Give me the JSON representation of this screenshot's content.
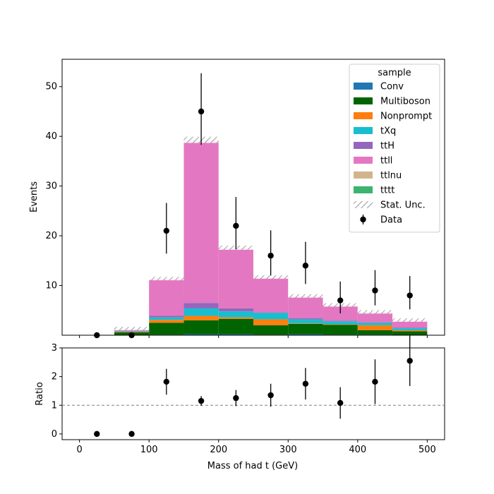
{
  "chart_data": {
    "type": "bar",
    "stacked": true,
    "xlabel": "Mass of had t (GeV)",
    "main_panel": {
      "ylabel": "Events",
      "xlim": [
        -25,
        525
      ],
      "ylim": [
        0,
        55.5
      ],
      "xticks": [
        0,
        100,
        200,
        300,
        400,
        500
      ],
      "yticks": [
        10,
        20,
        30,
        40,
        50
      ],
      "bin_edges": [
        0,
        50,
        100,
        150,
        200,
        250,
        300,
        350,
        400,
        450,
        500
      ],
      "series": [
        {
          "name": "Conv",
          "color": "#1f77b4",
          "values": [
            0,
            0,
            0.1,
            0.2,
            0.2,
            0.1,
            0.2,
            0.1,
            0.1,
            0
          ]
        },
        {
          "name": "Multiboson",
          "color": "#006400",
          "values": [
            0,
            0.6,
            2.4,
            2.8,
            3.1,
            1.9,
            2.1,
            2.0,
            0.9,
            0.8
          ]
        },
        {
          "name": "Nonprompt",
          "color": "#ff7f0e",
          "values": [
            0,
            0.1,
            0.6,
            0.9,
            0.3,
            1.2,
            0.1,
            0.1,
            1.0,
            0.2
          ]
        },
        {
          "name": "tXq",
          "color": "#17becf",
          "values": [
            0,
            0.1,
            0.5,
            1.5,
            1.2,
            1.3,
            0.8,
            0.6,
            0.5,
            0.4
          ]
        },
        {
          "name": "ttH",
          "color": "#9467bd",
          "values": [
            0,
            0.1,
            0.3,
            1.1,
            0.6,
            0.1,
            0.2,
            0.1,
            0.1,
            0.1
          ]
        },
        {
          "name": "ttll",
          "color": "#e377c2",
          "values": [
            0,
            0.4,
            7.4,
            32.5,
            12.1,
            7.0,
            4.4,
            3.1,
            2.0,
            1.5
          ]
        },
        {
          "name": "ttlnu",
          "color": "#d2b48c",
          "values": [
            0,
            0.05,
            0.1,
            0.2,
            0.1,
            0.1,
            0.1,
            0.1,
            0.1,
            0.05
          ]
        },
        {
          "name": "tttt",
          "color": "#3cb371",
          "values": [
            0,
            0,
            0,
            0.1,
            0,
            0,
            0,
            0,
            0,
            0
          ]
        }
      ],
      "stat_unc_label": "Stat. Unc.",
      "data": {
        "name": "Data",
        "x": [
          25,
          75,
          125,
          175,
          225,
          275,
          325,
          375,
          425,
          475
        ],
        "y": [
          0,
          0,
          21,
          45,
          22,
          16,
          14,
          7,
          9,
          8
        ],
        "yerr_low": [
          0,
          0,
          4.6,
          6.7,
          4.7,
          4.0,
          3.7,
          2.6,
          3.0,
          2.8
        ],
        "yerr_high": [
          0,
          0,
          5.6,
          7.7,
          5.8,
          5.1,
          4.8,
          3.8,
          4.1,
          3.9
        ]
      },
      "legend": {
        "title": "sample",
        "position": "top-right"
      }
    },
    "ratio_panel": {
      "ylabel": "Ratio",
      "ylim": [
        -0.2,
        3.0
      ],
      "yticks": [
        0,
        1,
        2,
        3
      ],
      "reference_line": 1,
      "x": [
        25,
        75,
        125,
        175,
        225,
        275,
        325,
        375,
        425,
        475
      ],
      "y": [
        0,
        0,
        1.82,
        1.15,
        1.25,
        1.35,
        1.75,
        1.08,
        1.82,
        2.55
      ],
      "err": [
        0,
        0,
        0.45,
        0.17,
        0.28,
        0.4,
        0.55,
        0.55,
        0.78,
        0.88
      ]
    }
  }
}
